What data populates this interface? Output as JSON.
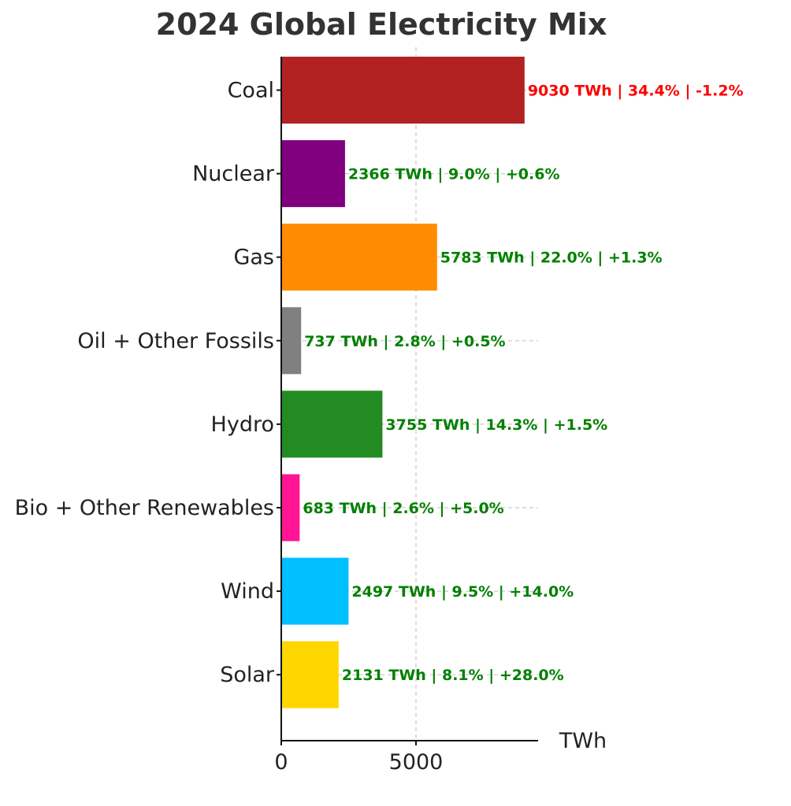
{
  "chart_data": {
    "type": "bar",
    "orientation": "horizontal",
    "title": "2024 Global Electricity Mix",
    "xlabel": "TWh",
    "ylabel": "",
    "xlim": [
      0,
      9500
    ],
    "xticks": [
      0,
      5000
    ],
    "grid": true,
    "categories": [
      "Coal",
      "Nuclear",
      "Gas",
      "Oil + Other Fossils",
      "Hydro",
      "Bio + Other Renewables",
      "Wind",
      "Solar"
    ],
    "values": [
      9030,
      2366,
      5783,
      737,
      3755,
      683,
      2497,
      2131
    ],
    "share_percent": [
      34.4,
      9.0,
      22.0,
      2.8,
      14.3,
      2.6,
      9.5,
      8.1
    ],
    "yoy_change_percent": [
      -1.2,
      0.6,
      1.3,
      0.5,
      1.5,
      5.0,
      14.0,
      28.0
    ],
    "bar_colors": [
      "#b22222",
      "#800080",
      "#ff8c00",
      "#808080",
      "#228b22",
      "#ff1493",
      "#00bfff",
      "#ffd700"
    ],
    "data_labels": [
      "9030 TWh | 34.4% | -1.2%",
      "2366 TWh | 9.0% | +0.6%",
      "5783 TWh | 22.0% | +1.3%",
      "737 TWh | 2.8% | +0.5%",
      "3755 TWh | 14.3% | +1.5%",
      "683 TWh | 2.6% | +5.0%",
      "2497 TWh | 9.5% | +14.0%",
      "2131 TWh | 8.1% | +28.0%"
    ],
    "label_colors": {
      "negative": "#ff0000",
      "positive": "#008000"
    }
  }
}
